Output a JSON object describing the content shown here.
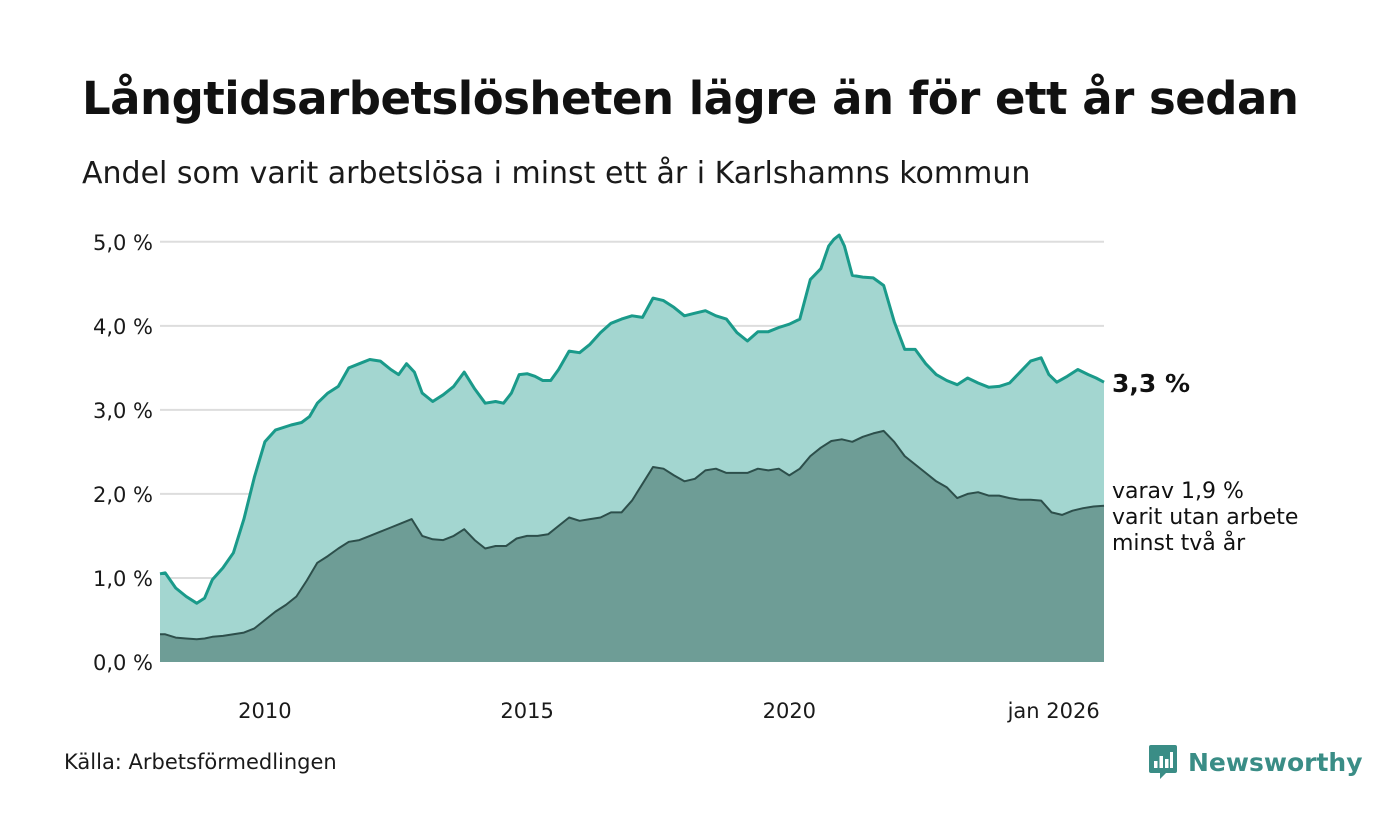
{
  "chart_data": {
    "type": "area",
    "title": "Långtidsarbetslösheten lägre än för ett år sedan",
    "subtitle": "Andel som varit arbetslösa i minst ett år i Karlshamns kommun",
    "x_ticks": [
      "2010",
      "2015",
      "2020",
      "jan 2026"
    ],
    "x_tick_positions": [
      2010,
      2015,
      2020,
      2025.04
    ],
    "y_ticks": [
      "0,0 %",
      "1,0 %",
      "2,0 %",
      "3,0 %",
      "4,0 %",
      "5,0 %"
    ],
    "y_tick_values": [
      0,
      1,
      2,
      3,
      4,
      5
    ],
    "xlim": [
      2008.0,
      2026.0
    ],
    "ylim": [
      0,
      5.2
    ],
    "grid": true,
    "series": [
      {
        "name": "minst ett år",
        "label": "3,3 %",
        "color": "#1a9a8a",
        "fill": "#a3d6d0",
        "points": [
          [
            2008.0,
            1.05
          ],
          [
            2008.1,
            1.06
          ],
          [
            2008.3,
            0.88
          ],
          [
            2008.5,
            0.78
          ],
          [
            2008.7,
            0.7
          ],
          [
            2008.85,
            0.76
          ],
          [
            2009.0,
            0.98
          ],
          [
            2009.2,
            1.12
          ],
          [
            2009.4,
            1.3
          ],
          [
            2009.6,
            1.7
          ],
          [
            2009.8,
            2.2
          ],
          [
            2010.0,
            2.62
          ],
          [
            2010.2,
            2.76
          ],
          [
            2010.5,
            2.82
          ],
          [
            2010.7,
            2.85
          ],
          [
            2010.85,
            2.92
          ],
          [
            2011.0,
            3.08
          ],
          [
            2011.2,
            3.2
          ],
          [
            2011.4,
            3.28
          ],
          [
            2011.6,
            3.5
          ],
          [
            2011.8,
            3.55
          ],
          [
            2012.0,
            3.6
          ],
          [
            2012.2,
            3.58
          ],
          [
            2012.4,
            3.48
          ],
          [
            2012.55,
            3.42
          ],
          [
            2012.7,
            3.55
          ],
          [
            2012.85,
            3.45
          ],
          [
            2013.0,
            3.2
          ],
          [
            2013.2,
            3.1
          ],
          [
            2013.4,
            3.18
          ],
          [
            2013.6,
            3.28
          ],
          [
            2013.8,
            3.45
          ],
          [
            2014.0,
            3.25
          ],
          [
            2014.2,
            3.08
          ],
          [
            2014.4,
            3.1
          ],
          [
            2014.55,
            3.08
          ],
          [
            2014.7,
            3.2
          ],
          [
            2014.85,
            3.42
          ],
          [
            2015.0,
            3.43
          ],
          [
            2015.15,
            3.4
          ],
          [
            2015.3,
            3.35
          ],
          [
            2015.45,
            3.35
          ],
          [
            2015.6,
            3.48
          ],
          [
            2015.8,
            3.7
          ],
          [
            2016.0,
            3.68
          ],
          [
            2016.2,
            3.78
          ],
          [
            2016.4,
            3.92
          ],
          [
            2016.6,
            4.03
          ],
          [
            2016.8,
            4.08
          ],
          [
            2017.0,
            4.12
          ],
          [
            2017.2,
            4.1
          ],
          [
            2017.4,
            4.33
          ],
          [
            2017.6,
            4.3
          ],
          [
            2017.8,
            4.22
          ],
          [
            2018.0,
            4.12
          ],
          [
            2018.2,
            4.15
          ],
          [
            2018.4,
            4.18
          ],
          [
            2018.6,
            4.12
          ],
          [
            2018.8,
            4.08
          ],
          [
            2019.0,
            3.92
          ],
          [
            2019.2,
            3.82
          ],
          [
            2019.4,
            3.93
          ],
          [
            2019.6,
            3.93
          ],
          [
            2019.8,
            3.98
          ],
          [
            2020.0,
            4.02
          ],
          [
            2020.2,
            4.08
          ],
          [
            2020.4,
            4.55
          ],
          [
            2020.6,
            4.68
          ],
          [
            2020.75,
            4.95
          ],
          [
            2020.85,
            5.03
          ],
          [
            2020.95,
            5.08
          ],
          [
            2021.05,
            4.95
          ],
          [
            2021.2,
            4.6
          ],
          [
            2021.4,
            4.58
          ],
          [
            2021.6,
            4.57
          ],
          [
            2021.8,
            4.48
          ],
          [
            2022.0,
            4.05
          ],
          [
            2022.2,
            3.72
          ],
          [
            2022.4,
            3.72
          ],
          [
            2022.6,
            3.55
          ],
          [
            2022.8,
            3.42
          ],
          [
            2023.0,
            3.35
          ],
          [
            2023.2,
            3.3
          ],
          [
            2023.4,
            3.38
          ],
          [
            2023.6,
            3.32
          ],
          [
            2023.8,
            3.27
          ],
          [
            2024.0,
            3.28
          ],
          [
            2024.2,
            3.32
          ],
          [
            2024.4,
            3.45
          ],
          [
            2024.6,
            3.58
          ],
          [
            2024.8,
            3.62
          ],
          [
            2024.95,
            3.42
          ],
          [
            2025.1,
            3.33
          ],
          [
            2025.3,
            3.4
          ],
          [
            2025.5,
            3.48
          ],
          [
            2025.7,
            3.42
          ],
          [
            2025.85,
            3.38
          ],
          [
            2026.0,
            3.33
          ]
        ]
      },
      {
        "name": "minst två år",
        "label_lines": [
          "varav 1,9 %",
          "varit utan arbete",
          "minst två år"
        ],
        "color": "#2d4f4b",
        "fill": "#6e9d96",
        "points": [
          [
            2008.0,
            0.33
          ],
          [
            2008.1,
            0.33
          ],
          [
            2008.3,
            0.29
          ],
          [
            2008.5,
            0.28
          ],
          [
            2008.7,
            0.27
          ],
          [
            2008.85,
            0.28
          ],
          [
            2009.0,
            0.3
          ],
          [
            2009.2,
            0.31
          ],
          [
            2009.4,
            0.33
          ],
          [
            2009.6,
            0.35
          ],
          [
            2009.8,
            0.4
          ],
          [
            2010.0,
            0.5
          ],
          [
            2010.2,
            0.6
          ],
          [
            2010.4,
            0.68
          ],
          [
            2010.6,
            0.78
          ],
          [
            2010.8,
            0.97
          ],
          [
            2011.0,
            1.18
          ],
          [
            2011.2,
            1.26
          ],
          [
            2011.4,
            1.35
          ],
          [
            2011.6,
            1.43
          ],
          [
            2011.8,
            1.45
          ],
          [
            2012.0,
            1.5
          ],
          [
            2012.2,
            1.55
          ],
          [
            2012.4,
            1.6
          ],
          [
            2012.6,
            1.65
          ],
          [
            2012.8,
            1.7
          ],
          [
            2013.0,
            1.5
          ],
          [
            2013.2,
            1.46
          ],
          [
            2013.4,
            1.45
          ],
          [
            2013.6,
            1.5
          ],
          [
            2013.8,
            1.58
          ],
          [
            2014.0,
            1.45
          ],
          [
            2014.2,
            1.35
          ],
          [
            2014.4,
            1.38
          ],
          [
            2014.6,
            1.38
          ],
          [
            2014.8,
            1.47
          ],
          [
            2015.0,
            1.5
          ],
          [
            2015.2,
            1.5
          ],
          [
            2015.4,
            1.52
          ],
          [
            2015.6,
            1.62
          ],
          [
            2015.8,
            1.72
          ],
          [
            2016.0,
            1.68
          ],
          [
            2016.2,
            1.7
          ],
          [
            2016.4,
            1.72
          ],
          [
            2016.6,
            1.78
          ],
          [
            2016.8,
            1.78
          ],
          [
            2017.0,
            1.92
          ],
          [
            2017.2,
            2.12
          ],
          [
            2017.4,
            2.32
          ],
          [
            2017.6,
            2.3
          ],
          [
            2017.8,
            2.22
          ],
          [
            2018.0,
            2.15
          ],
          [
            2018.2,
            2.18
          ],
          [
            2018.4,
            2.28
          ],
          [
            2018.6,
            2.3
          ],
          [
            2018.8,
            2.25
          ],
          [
            2019.0,
            2.25
          ],
          [
            2019.2,
            2.25
          ],
          [
            2019.4,
            2.3
          ],
          [
            2019.6,
            2.28
          ],
          [
            2019.8,
            2.3
          ],
          [
            2020.0,
            2.22
          ],
          [
            2020.2,
            2.3
          ],
          [
            2020.4,
            2.45
          ],
          [
            2020.6,
            2.55
          ],
          [
            2020.8,
            2.63
          ],
          [
            2021.0,
            2.65
          ],
          [
            2021.2,
            2.62
          ],
          [
            2021.4,
            2.68
          ],
          [
            2021.6,
            2.72
          ],
          [
            2021.8,
            2.75
          ],
          [
            2022.0,
            2.62
          ],
          [
            2022.2,
            2.45
          ],
          [
            2022.4,
            2.35
          ],
          [
            2022.6,
            2.25
          ],
          [
            2022.8,
            2.15
          ],
          [
            2023.0,
            2.08
          ],
          [
            2023.2,
            1.95
          ],
          [
            2023.4,
            2.0
          ],
          [
            2023.6,
            2.02
          ],
          [
            2023.8,
            1.98
          ],
          [
            2024.0,
            1.98
          ],
          [
            2024.2,
            1.95
          ],
          [
            2024.4,
            1.93
          ],
          [
            2024.6,
            1.93
          ],
          [
            2024.8,
            1.92
          ],
          [
            2025.0,
            1.78
          ],
          [
            2025.2,
            1.75
          ],
          [
            2025.4,
            1.8
          ],
          [
            2025.6,
            1.83
          ],
          [
            2025.8,
            1.85
          ],
          [
            2026.0,
            1.86
          ]
        ]
      }
    ],
    "source": "Källa: Arbetsförmedlingen",
    "brand": "Newsworthy"
  },
  "colors": {
    "accent": "#1a9a8a",
    "grid": "#dddddd",
    "brand": "#3a8d86"
  }
}
